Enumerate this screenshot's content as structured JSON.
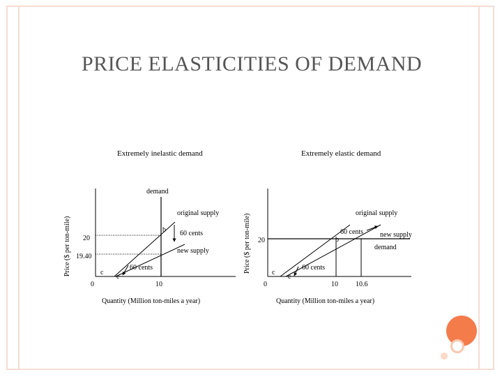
{
  "slide": {
    "title": "PRICE ELASTICITIES OF DEMAND",
    "accent_color": "#f47b4a",
    "frame_color": "#f6dcd3"
  },
  "left_diagram": {
    "heading": "Extremely inelastic demand",
    "y_axis_label": "Price ($ per ton-mile)",
    "x_axis_label": "Quantity (Million ton-miles a year)",
    "demand_label": "demand",
    "original_supply_label": "original supply",
    "new_supply_label": "new supply",
    "price_high": "20",
    "price_low": "19.40",
    "origin": "0",
    "quantity_tick": "10",
    "point_b": "b",
    "point_c": "c",
    "point_e": "e",
    "shift_label_top": "60 cents",
    "shift_label_bottom": "60 cents"
  },
  "right_diagram": {
    "heading": "Extremely elastic demand",
    "y_axis_label": "Price ($ per ton-mile)",
    "x_axis_label": "Quantity (Million ton-miles a year)",
    "demand_label": "demand",
    "original_supply_label": "original supply",
    "new_supply_label": "new supply",
    "price_level": "20",
    "origin": "0",
    "quantity_tick_1": "10",
    "quantity_tick_2": "10.6",
    "point_b": "b",
    "point_c": "c",
    "point_e": "e",
    "shift_label_top": "60 cents",
    "shift_label_bottom": "60 cents"
  }
}
